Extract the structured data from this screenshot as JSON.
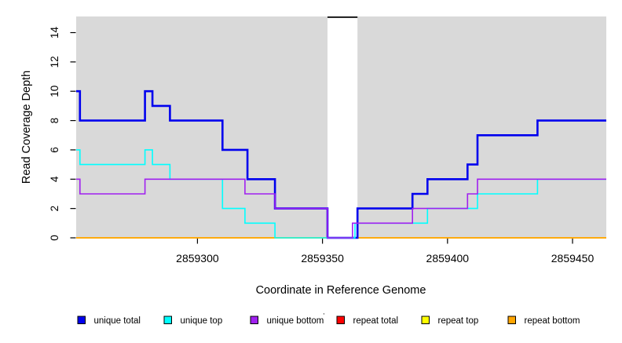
{
  "chart_data": {
    "type": "line",
    "subtype": "step-coverage",
    "title": "",
    "xlabel": "Coordinate in Reference Genome",
    "ylabel": "Read Coverage Depth",
    "x_domain": [
      2859251.5,
      2859463.5
    ],
    "y_domain": [
      0,
      15.1
    ],
    "x_ticks": [
      2859300,
      2859350,
      2859400,
      2859450
    ],
    "y_ticks": [
      0,
      2,
      4,
      6,
      8,
      10,
      12,
      14
    ],
    "grid": "off",
    "plot_bg": "#d9d9d9",
    "page_bg": "#ffffff",
    "masked_region": {
      "x_start": 2859352,
      "x_end": 2859364,
      "fill": "#ffffff",
      "cap_color": "#000000",
      "note": "white off-scale/masked column with black cap at top of panel"
    },
    "series": [
      {
        "name": "unique total",
        "color": "#0000ee",
        "line_width": 2.6,
        "steps": [
          [
            2859251.5,
            10
          ],
          [
            2859253,
            8
          ],
          [
            2859279,
            10
          ],
          [
            2859282,
            9
          ],
          [
            2859289,
            8
          ],
          [
            2859310,
            6
          ],
          [
            2859320,
            4
          ],
          [
            2859331,
            2
          ],
          [
            2859352,
            0
          ],
          [
            2859364,
            2
          ],
          [
            2859386,
            3
          ],
          [
            2859392,
            4
          ],
          [
            2859408,
            5
          ],
          [
            2859412,
            7
          ],
          [
            2859436,
            8
          ]
        ]
      },
      {
        "name": "unique top",
        "color": "#00ffff",
        "line_width": 1.6,
        "steps": [
          [
            2859251.5,
            6
          ],
          [
            2859253,
            5
          ],
          [
            2859279,
            6
          ],
          [
            2859282,
            5
          ],
          [
            2859289,
            4
          ],
          [
            2859310,
            2
          ],
          [
            2859319,
            1
          ],
          [
            2859331,
            0
          ],
          [
            2859363,
            1
          ],
          [
            2859392,
            2
          ],
          [
            2859412,
            3
          ],
          [
            2859436,
            4
          ]
        ]
      },
      {
        "name": "unique bottom",
        "color": "#a020f0",
        "line_width": 1.6,
        "steps": [
          [
            2859251.5,
            4
          ],
          [
            2859253,
            3
          ],
          [
            2859279,
            4
          ],
          [
            2859319,
            3
          ],
          [
            2859331,
            2
          ],
          [
            2859352,
            0
          ],
          [
            2859362,
            1
          ],
          [
            2859386,
            2
          ],
          [
            2859408,
            3
          ],
          [
            2859412,
            4
          ]
        ]
      },
      {
        "name": "repeat total",
        "color": "#ff0000",
        "line_width": 1.6,
        "steps": [
          [
            2859251.5,
            0
          ]
        ]
      },
      {
        "name": "repeat top",
        "color": "#ffff00",
        "line_width": 1.6,
        "steps": [
          [
            2859251.5,
            0
          ]
        ]
      },
      {
        "name": "repeat bottom",
        "color": "#ffa500",
        "line_width": 1.6,
        "steps": [
          [
            2859251.5,
            0
          ]
        ]
      }
    ],
    "draw_order": [
      3,
      4,
      5,
      0,
      1,
      2
    ],
    "legend": {
      "position": "bottom",
      "entries": [
        "unique total",
        "unique top",
        "unique bottom",
        "repeat total",
        "repeat top",
        "repeat bottom"
      ],
      "stray_mark": "'"
    }
  }
}
